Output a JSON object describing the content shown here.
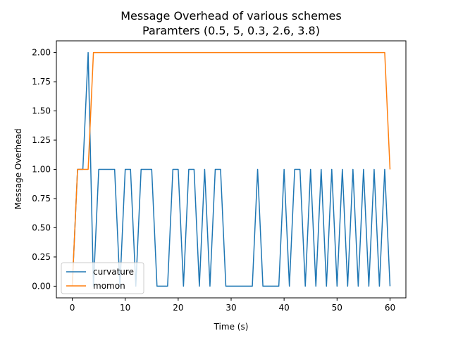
{
  "chart_data": {
    "type": "line",
    "title": "Message Overhead of various schemes",
    "subtitle": "Paramters (0.5, 5, 0.3, 2.6, 3.8)",
    "xlabel": "Time (s)",
    "ylabel": "Message Overhead",
    "xlim": [
      -3,
      63
    ],
    "ylim": [
      -0.1,
      2.1
    ],
    "xticks": [
      0,
      10,
      20,
      30,
      40,
      50,
      60
    ],
    "xtick_labels": [
      "0",
      "10",
      "20",
      "30",
      "40",
      "50",
      "60"
    ],
    "yticks": [
      0,
      0.25,
      0.5,
      0.75,
      1.0,
      1.25,
      1.5,
      1.75,
      2.0
    ],
    "ytick_labels": [
      "0.00",
      "0.25",
      "0.50",
      "0.75",
      "1.00",
      "1.25",
      "1.50",
      "1.75",
      "2.00"
    ],
    "grid": false,
    "legend_position": "lower-left",
    "x": [
      0,
      1,
      2,
      3,
      4,
      5,
      6,
      7,
      8,
      9,
      10,
      11,
      12,
      13,
      14,
      15,
      16,
      17,
      18,
      19,
      20,
      21,
      22,
      23,
      24,
      25,
      26,
      27,
      28,
      29,
      30,
      31,
      32,
      33,
      34,
      35,
      36,
      37,
      38,
      39,
      40,
      41,
      42,
      43,
      44,
      45,
      46,
      47,
      48,
      49,
      50,
      51,
      52,
      53,
      54,
      55,
      56,
      57,
      58,
      59,
      60
    ],
    "series": [
      {
        "name": "curvature",
        "color": "#1f77b4",
        "values": [
          0,
          1,
          1,
          2,
          0,
          1,
          1,
          1,
          1,
          0,
          1,
          1,
          0,
          1,
          1,
          1,
          0,
          0,
          0,
          1,
          1,
          0,
          1,
          1,
          0,
          1,
          0,
          1,
          1,
          0,
          0,
          0,
          0,
          0,
          0,
          1,
          0,
          0,
          0,
          0,
          1,
          0,
          1,
          1,
          0,
          1,
          0,
          1,
          0,
          1,
          0,
          1,
          0,
          1,
          0,
          1,
          0,
          1,
          0,
          1,
          0
        ]
      },
      {
        "name": "momon",
        "color": "#ff7f0e",
        "values": [
          0,
          1,
          1,
          1,
          2,
          2,
          2,
          2,
          2,
          2,
          2,
          2,
          2,
          2,
          2,
          2,
          2,
          2,
          2,
          2,
          2,
          2,
          2,
          2,
          2,
          2,
          2,
          2,
          2,
          2,
          2,
          2,
          2,
          2,
          2,
          2,
          2,
          2,
          2,
          2,
          2,
          2,
          2,
          2,
          2,
          2,
          2,
          2,
          2,
          2,
          2,
          2,
          2,
          2,
          2,
          2,
          2,
          2,
          2,
          2,
          1
        ]
      }
    ]
  }
}
